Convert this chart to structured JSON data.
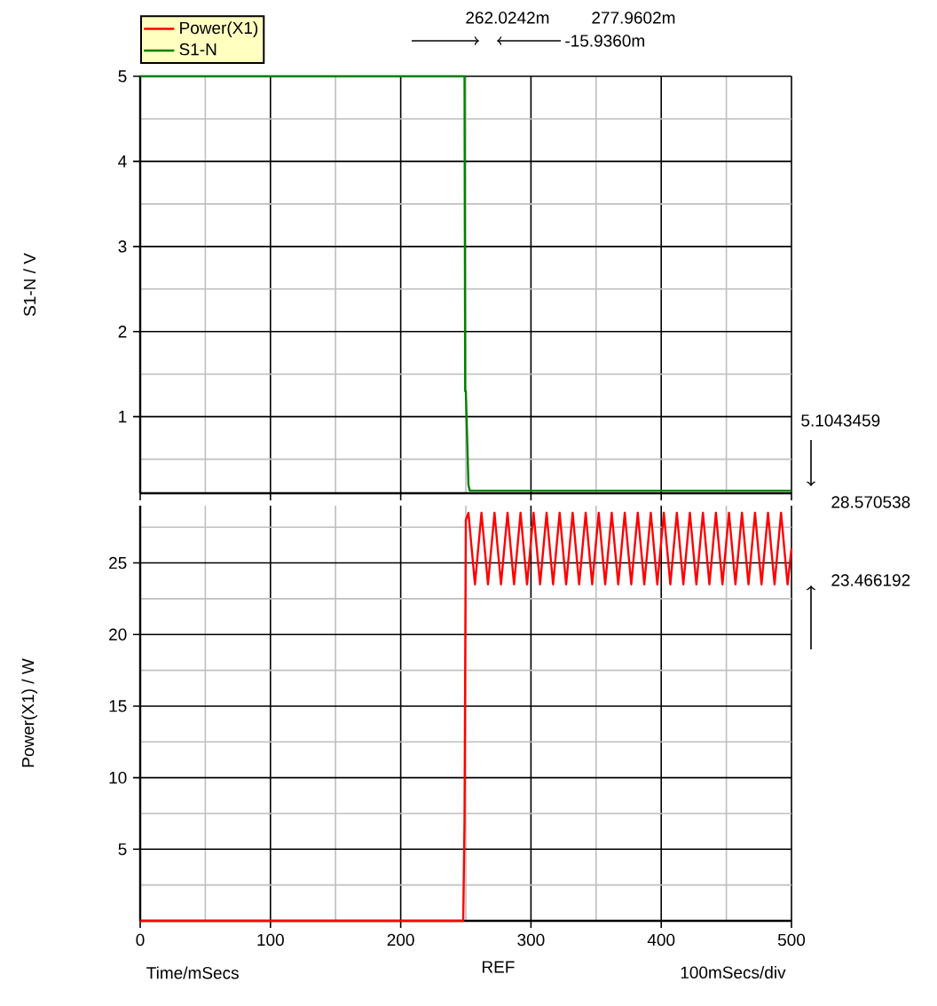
{
  "chart_data": [
    {
      "type": "line",
      "ylabel": "S1-N / V",
      "xlim": [
        0,
        500
      ],
      "ylim": [
        0.1,
        5
      ],
      "xticks": [
        0,
        100,
        200,
        300,
        400,
        500,
        {
          "value": 50,
          "label": null
        },
        {
          "value": 150,
          "label": null
        },
        {
          "value": 250,
          "label": null
        },
        {
          "value": 350,
          "label": null
        },
        {
          "value": 450,
          "label": null
        }
      ],
      "yticks": [
        1,
        2,
        3,
        4,
        5,
        {
          "value": 0.5,
          "label": null
        },
        {
          "value": 1.5,
          "label": null
        },
        {
          "value": 2.5,
          "label": null
        },
        {
          "value": 3.5,
          "label": null
        },
        {
          "value": 4.5,
          "label": null
        }
      ],
      "tick_labels": "y",
      "grid": true,
      "legend": "top left",
      "series": [
        {
          "name": "S1-N",
          "color": "#008000",
          "x": [
            0,
            249,
            249.5,
            250,
            252,
            253,
            500
          ],
          "values": [
            5,
            5,
            1.3,
            1.3,
            0.2,
            0.13,
            0.13
          ]
        }
      ],
      "annotations": [
        "262.0242m",
        "277.9602m",
        "-15.9360m",
        "5.1043459"
      ]
    },
    {
      "type": "line",
      "ylabel": "Power(X1) / W",
      "xlabel": "Time/mSecs",
      "xlim": [
        0,
        500
      ],
      "ylim": [
        0,
        29
      ],
      "xticks": [
        0,
        100,
        200,
        300,
        400,
        500,
        {
          "value": 50,
          "label": null
        },
        {
          "value": 150,
          "label": null
        },
        {
          "value": 250,
          "label": null
        },
        {
          "value": 350,
          "label": null
        },
        {
          "value": 450,
          "label": null
        }
      ],
      "yticks": [
        5,
        10,
        15,
        20,
        25,
        {
          "value": 2.5,
          "label": null
        },
        {
          "value": 7.5,
          "label": null
        },
        {
          "value": 12.5,
          "label": null
        },
        {
          "value": 17.5,
          "label": null
        },
        {
          "value": 22.5,
          "label": null
        },
        {
          "value": 27.5,
          "label": null
        }
      ],
      "grid": true,
      "series": [
        {
          "name": "Power(X1)",
          "color": "#ff0000",
          "x": [
            0,
            248,
            249,
            250,
            252,
            257,
            262,
            267,
            272,
            277,
            282,
            287,
            292,
            297,
            302,
            307,
            312,
            317,
            322,
            327,
            332,
            337,
            342,
            347,
            352,
            357,
            362,
            367,
            372,
            377,
            382,
            387,
            392,
            397,
            402,
            407,
            412,
            417,
            422,
            427,
            432,
            437,
            442,
            447,
            452,
            457,
            462,
            467,
            472,
            477,
            482,
            487,
            492,
            497,
            500
          ],
          "values": [
            0,
            0,
            7,
            28,
            28.5,
            23.5,
            28.5,
            23.5,
            28.5,
            23.5,
            28.5,
            23.5,
            28.5,
            23.5,
            28.5,
            23.5,
            28.5,
            23.5,
            28.5,
            23.5,
            28.5,
            23.5,
            28.5,
            23.5,
            28.5,
            23.5,
            28.5,
            23.5,
            28.5,
            23.5,
            28.5,
            23.5,
            28.5,
            23.5,
            28.5,
            23.5,
            28.5,
            23.5,
            28.5,
            23.5,
            28.5,
            23.5,
            28.5,
            23.5,
            28.5,
            23.5,
            28.5,
            23.5,
            28.5,
            23.5,
            28.5,
            23.5,
            28.5,
            23.5,
            26
          ]
        }
      ],
      "annotations": [
        "28.570538",
        "23.466192",
        "REF",
        "100mSecs/div"
      ]
    }
  ]
}
